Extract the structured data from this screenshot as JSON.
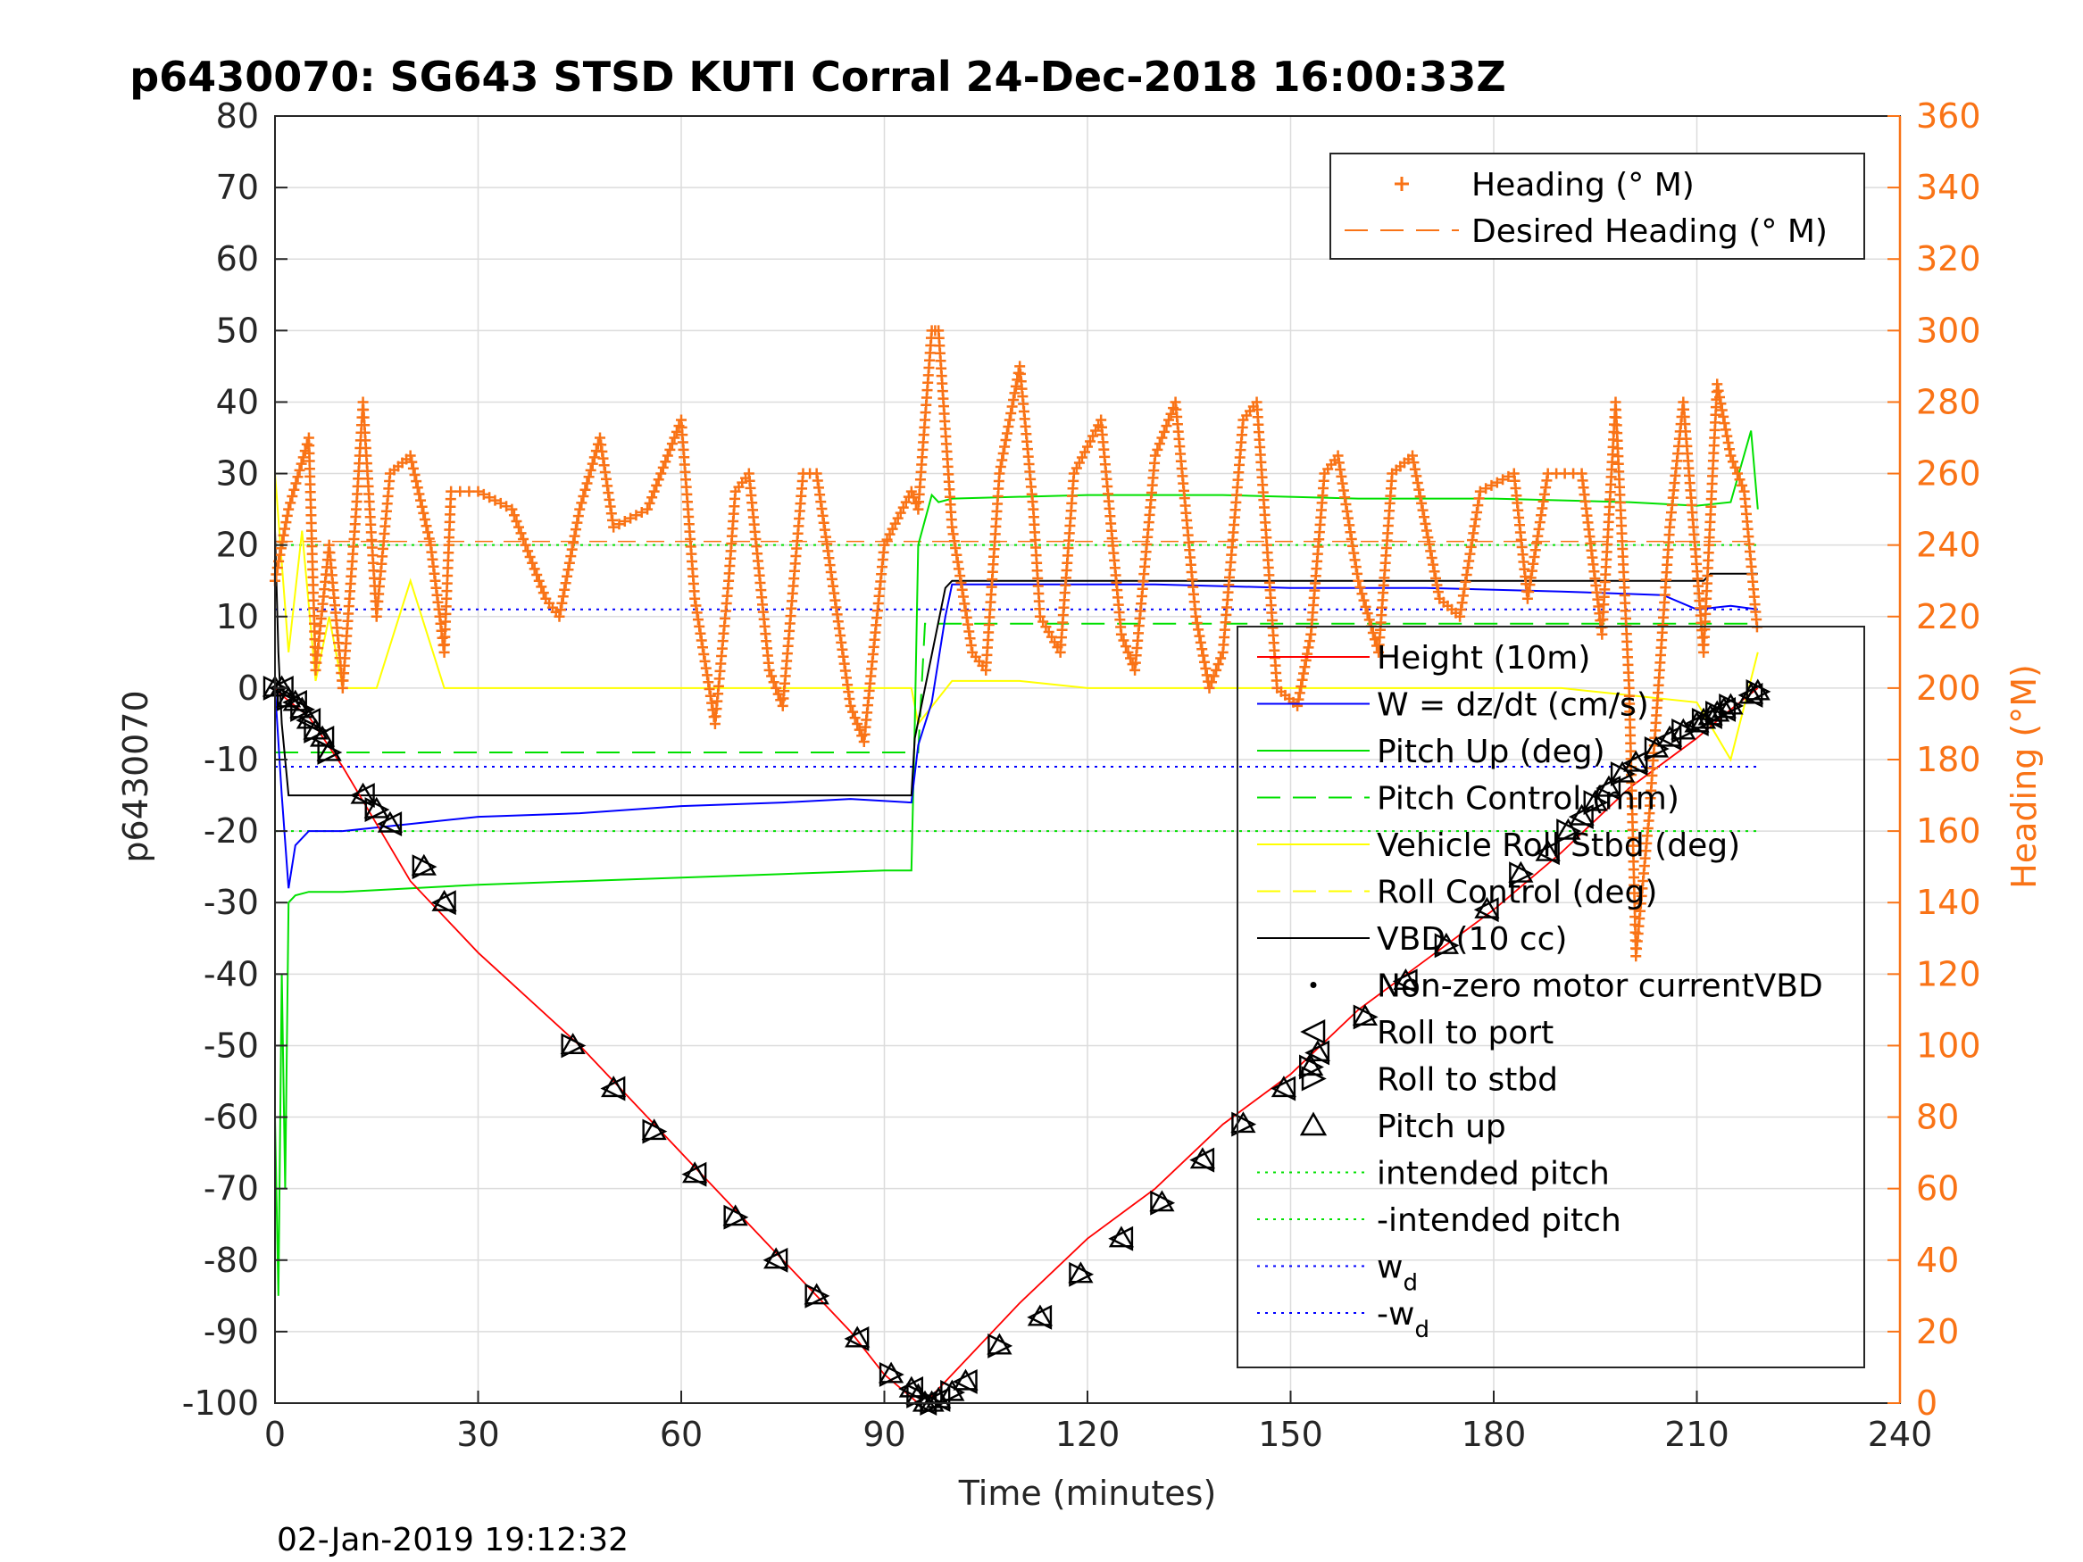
{
  "chart_data": {
    "type": "line",
    "title": "p6430070: SG643 STSD KUTI Corral 24-Dec-2018 16:00:33Z",
    "xlabel": "Time (minutes)",
    "ylabel": "p6430070",
    "y2label": "Heading (°M)",
    "footer": "02-Jan-2019 19:12:32",
    "xlim": [
      0,
      240
    ],
    "ylim": [
      -100,
      80
    ],
    "y2lim": [
      0,
      360
    ],
    "xticks": [
      "0",
      "30",
      "60",
      "90",
      "120",
      "150",
      "180",
      "210",
      "240"
    ],
    "yticks": [
      "80",
      "70",
      "60",
      "50",
      "40",
      "30",
      "20",
      "10",
      "0",
      "-10",
      "-20",
      "-30",
      "-40",
      "-50",
      "-60",
      "-70",
      "-80",
      "-90",
      "-100"
    ],
    "y2ticks": [
      "360",
      "340",
      "320",
      "300",
      "280",
      "260",
      "240",
      "220",
      "200",
      "180",
      "160",
      "140",
      "120",
      "100",
      "80",
      "60",
      "40",
      "20",
      "0"
    ],
    "grid": true,
    "legend_right_placement": "top-right",
    "legend_left_placement": "lower-right",
    "legend_right": [
      {
        "label": "Heading (° M)",
        "color": "#f97316",
        "marker": "+"
      },
      {
        "label": "Desired Heading (° M)",
        "color": "#f97316",
        "style": "dashed"
      }
    ],
    "legend_left": [
      {
        "label": "Height (10m)",
        "color": "#ff0000",
        "style": "solid"
      },
      {
        "label": "W = dz/dt (cm/s)",
        "color": "#0000ff",
        "style": "solid"
      },
      {
        "label": "Pitch Up (deg)",
        "color": "#00e000",
        "style": "solid"
      },
      {
        "label": "Pitch Control (mm)",
        "color": "#00e000",
        "style": "dashed"
      },
      {
        "label": "Vehicle Roll Stbd (deg)",
        "color": "#ffff00",
        "style": "solid"
      },
      {
        "label": "Roll Control (deg)",
        "color": "#ffff00",
        "style": "dashed"
      },
      {
        "label": "VBD (10 cc)",
        "color": "#000000",
        "style": "solid"
      },
      {
        "label": "Non-zero motor currentVBD",
        "color": "#000000",
        "marker": "dot"
      },
      {
        "label": "Roll to port",
        "color": "#000000",
        "marker": "tri-left"
      },
      {
        "label": "Roll to stbd",
        "color": "#000000",
        "marker": "tri-right"
      },
      {
        "label": "Pitch up",
        "color": "#000000",
        "marker": "tri-up"
      },
      {
        "label": "intended pitch",
        "color": "#00e000",
        "style": "dotted"
      },
      {
        "label": "-intended pitch",
        "color": "#00e000",
        "style": "dotted"
      },
      {
        "label": "w",
        "sub": "d",
        "color": "#0000ff",
        "style": "dotted"
      },
      {
        "label": "-w",
        "sub": "d",
        "color": "#0000ff",
        "style": "dotted"
      }
    ],
    "series": [
      {
        "name": "Height (10m)",
        "color": "#ff0000",
        "axis": "left",
        "x": [
          0,
          1,
          5,
          10,
          20,
          30,
          45,
          60,
          75,
          85,
          90,
          95,
          96,
          100,
          110,
          120,
          130,
          140,
          150,
          160,
          170,
          180,
          190,
          200,
          210,
          215,
          219
        ],
        "y": [
          0,
          -1,
          -4,
          -11,
          -27,
          -37,
          -50,
          -65,
          -80,
          -90,
          -96,
          -100,
          -100,
          -96,
          -86,
          -77,
          -70,
          -61,
          -54,
          -45,
          -38,
          -31,
          -23,
          -14,
          -7,
          -3,
          0
        ]
      },
      {
        "name": "W = dz/dt (cm/s)",
        "color": "#0000ff",
        "axis": "left",
        "x": [
          0,
          1,
          2,
          3,
          5,
          10,
          20,
          30,
          45,
          60,
          75,
          85,
          94,
          95,
          97,
          99,
          100,
          110,
          130,
          150,
          170,
          190,
          205,
          210,
          215,
          219
        ],
        "y": [
          0,
          -15,
          -28,
          -22,
          -20,
          -20,
          -19,
          -18,
          -17.5,
          -16.5,
          -16,
          -15.5,
          -16,
          -8,
          -2,
          10,
          14.5,
          14.5,
          14.5,
          14,
          14,
          13.5,
          13,
          11,
          11.5,
          11
        ]
      },
      {
        "name": "Pitch Up (deg)",
        "color": "#00e000",
        "axis": "left",
        "x": [
          0,
          0.5,
          1,
          1.5,
          2,
          3,
          5,
          10,
          20,
          30,
          45,
          60,
          75,
          90,
          94,
          94.5,
          95,
          97,
          98,
          100,
          120,
          140,
          160,
          180,
          200,
          210,
          215,
          218,
          219
        ],
        "y": [
          -60,
          -85,
          -40,
          -70,
          -30,
          -29,
          -28.5,
          -28.5,
          -28,
          -27.5,
          -27,
          -26.5,
          -26,
          -25.5,
          -25.5,
          -5,
          20,
          27,
          26,
          26.5,
          27,
          27,
          26.5,
          26.5,
          26,
          25.5,
          26,
          36,
          25
        ]
      },
      {
        "name": "VBD (10 cc)",
        "color": "#000000",
        "axis": "left",
        "x": [
          0,
          0.5,
          1,
          2,
          94,
          94.5,
          99,
          100,
          211,
          212,
          219
        ],
        "y": [
          22,
          5,
          -5,
          -15,
          -15,
          -7,
          14,
          15,
          15,
          16,
          16
        ]
      },
      {
        "name": "Vehicle Roll Stbd (deg)",
        "color": "#ffff00",
        "axis": "left",
        "x": [
          0,
          2,
          4,
          6,
          8,
          10,
          15,
          20,
          25,
          30,
          40,
          50,
          60,
          70,
          80,
          90,
          94,
          95,
          100,
          110,
          120,
          130,
          140,
          150,
          160,
          170,
          180,
          190,
          200,
          210,
          215,
          219
        ],
        "y": [
          30,
          5,
          22,
          1,
          10,
          0,
          0,
          15,
          0,
          0,
          0,
          0,
          0,
          0,
          0,
          0,
          0,
          -5,
          1,
          1,
          0,
          0,
          0,
          0,
          0,
          0,
          0,
          0,
          -1,
          -2,
          -10,
          5
        ]
      },
      {
        "name": "Heading (° M)",
        "color": "#f97316",
        "axis": "right",
        "marker": "+",
        "x": [
          0,
          2,
          5,
          6,
          8,
          10,
          12,
          13,
          15,
          17,
          20,
          23,
          25,
          26,
          30,
          35,
          40,
          42,
          45,
          48,
          50,
          55,
          60,
          62,
          65,
          67,
          68,
          70,
          73,
          75,
          78,
          80,
          85,
          87,
          90,
          94,
          95,
          97,
          98,
          100,
          103,
          105,
          107,
          110,
          112,
          113,
          116,
          118,
          122,
          125,
          127,
          130,
          133,
          136,
          138,
          140,
          143,
          145,
          148,
          151,
          153,
          155,
          157,
          160,
          163,
          165,
          168,
          172,
          175,
          178,
          183,
          185,
          188,
          193,
          196,
          198,
          200,
          201,
          203,
          206,
          208,
          211,
          213,
          215,
          217,
          219
        ],
        "y": [
          230,
          250,
          270,
          205,
          240,
          200,
          250,
          280,
          220,
          260,
          265,
          240,
          210,
          255,
          255,
          250,
          225,
          220,
          250,
          270,
          245,
          250,
          275,
          225,
          190,
          230,
          255,
          260,
          205,
          195,
          260,
          260,
          195,
          185,
          240,
          255,
          250,
          300,
          300,
          245,
          210,
          205,
          260,
          290,
          250,
          220,
          210,
          260,
          275,
          215,
          205,
          265,
          280,
          220,
          200,
          210,
          275,
          280,
          200,
          195,
          215,
          260,
          265,
          230,
          210,
          260,
          265,
          225,
          220,
          255,
          260,
          225,
          260,
          260,
          215,
          280,
          200,
          125,
          165,
          245,
          280,
          210,
          285,
          265,
          255,
          215
        ]
      }
    ],
    "reference_lines": [
      {
        "label": "intended pitch",
        "value": 20,
        "color": "#00e000",
        "style": "dotted",
        "axis": "left"
      },
      {
        "label": "-intended pitch",
        "value": -20,
        "color": "#00e000",
        "style": "dotted",
        "axis": "left"
      },
      {
        "label": "w_d",
        "value": 11,
        "color": "#0000ff",
        "style": "dotted",
        "axis": "left"
      },
      {
        "label": "-w_d",
        "value": -11,
        "color": "#0000ff",
        "style": "dotted",
        "axis": "left"
      }
    ],
    "pitch_control": {
      "x": [
        0,
        95,
        96,
        219
      ],
      "y": [
        -9,
        -9,
        9,
        9
      ]
    },
    "desired_heading": {
      "value": 241,
      "axis": "right"
    },
    "markers": {
      "x": [
        0,
        1,
        2,
        3,
        4,
        5,
        6,
        7,
        8,
        13,
        15,
        17,
        22,
        25,
        44,
        50,
        56,
        62,
        68,
        74,
        80,
        86,
        91,
        94,
        95,
        96,
        97,
        98,
        100,
        102,
        107,
        113,
        119,
        125,
        131,
        137,
        143,
        149,
        153,
        154,
        161,
        167,
        173,
        179,
        184,
        188,
        191,
        193,
        195,
        197,
        199,
        201,
        204,
        206,
        208,
        210,
        211,
        212,
        213,
        214,
        215,
        218,
        219
      ],
      "y": [
        0,
        0,
        -1.5,
        -2,
        -3,
        -4.5,
        -6,
        -7,
        -9,
        -15,
        -17,
        -19,
        -25,
        -30,
        -50,
        -56,
        -62,
        -68,
        -74,
        -80,
        -85,
        -91,
        -96,
        -98,
        -99,
        -100,
        -100,
        -99.5,
        -98.5,
        -97,
        -92,
        -88,
        -82,
        -77,
        -72,
        -66,
        -61,
        -56,
        -53,
        -51,
        -46,
        -41,
        -36,
        -31,
        -26,
        -23,
        -20,
        -18,
        -16,
        -14,
        -12,
        -10.5,
        -8.5,
        -7,
        -6,
        -5,
        -4.5,
        -4,
        -3.5,
        -3,
        -2.5,
        -1,
        -0.5
      ]
    }
  }
}
